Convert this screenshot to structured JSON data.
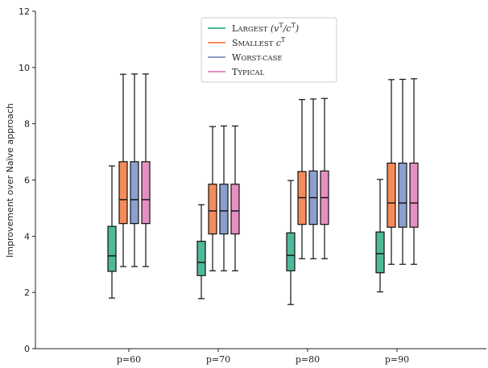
{
  "chart_data": {
    "type": "box",
    "ylabel": "Improvement over Naïve approach",
    "ylim": [
      0,
      12
    ],
    "yticks": [
      "0",
      "2",
      "4",
      "6",
      "8",
      "10",
      "12"
    ],
    "categories": [
      "p=60",
      "p=70",
      "p=80",
      "p=90"
    ],
    "legend_position": "top-center",
    "series": [
      {
        "name": "Largest (v^T/c^T)",
        "color": "#4fb99a",
        "boxes": [
          {
            "whislo": 1.8,
            "q1": 2.75,
            "med": 3.3,
            "q3": 4.35,
            "whishi": 6.5
          },
          {
            "whislo": 1.78,
            "q1": 2.6,
            "med": 3.07,
            "q3": 3.82,
            "whishi": 5.12
          },
          {
            "whislo": 1.57,
            "q1": 2.77,
            "med": 3.32,
            "q3": 4.12,
            "whishi": 5.98
          },
          {
            "whislo": 2.02,
            "q1": 2.7,
            "med": 3.38,
            "q3": 4.15,
            "whishi": 6.02
          }
        ]
      },
      {
        "name": "Smallest c^T",
        "color": "#f68b5a",
        "boxes": [
          {
            "whislo": 2.92,
            "q1": 4.45,
            "med": 5.3,
            "q3": 6.65,
            "whishi": 9.76
          },
          {
            "whislo": 2.77,
            "q1": 4.08,
            "med": 4.9,
            "q3": 5.85,
            "whishi": 7.9
          },
          {
            "whislo": 3.2,
            "q1": 4.42,
            "med": 5.37,
            "q3": 6.3,
            "whishi": 8.86
          },
          {
            "whislo": 3.0,
            "q1": 4.32,
            "med": 5.18,
            "q3": 6.6,
            "whishi": 9.57
          }
        ]
      },
      {
        "name": "Worst-case",
        "color": "#8d9fcb",
        "boxes": [
          {
            "whislo": 2.92,
            "q1": 4.45,
            "med": 5.3,
            "q3": 6.65,
            "whishi": 9.77
          },
          {
            "whislo": 2.77,
            "q1": 4.08,
            "med": 4.9,
            "q3": 5.85,
            "whishi": 7.92
          },
          {
            "whislo": 3.2,
            "q1": 4.42,
            "med": 5.37,
            "q3": 6.32,
            "whishi": 8.88
          },
          {
            "whislo": 3.0,
            "q1": 4.32,
            "med": 5.18,
            "q3": 6.6,
            "whishi": 9.58
          }
        ]
      },
      {
        "name": "Typical",
        "color": "#e68fc3",
        "boxes": [
          {
            "whislo": 2.92,
            "q1": 4.45,
            "med": 5.3,
            "q3": 6.65,
            "whishi": 9.77
          },
          {
            "whislo": 2.77,
            "q1": 4.08,
            "med": 4.9,
            "q3": 5.85,
            "whishi": 7.92
          },
          {
            "whislo": 3.2,
            "q1": 4.42,
            "med": 5.37,
            "q3": 6.32,
            "whishi": 8.9
          },
          {
            "whislo": 3.0,
            "q1": 4.32,
            "med": 5.18,
            "q3": 6.6,
            "whishi": 9.6
          }
        ]
      }
    ]
  }
}
